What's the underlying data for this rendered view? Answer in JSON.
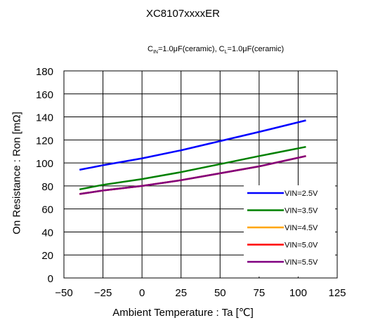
{
  "chart_data": {
    "type": "line",
    "title": "XC8107xxxxER",
    "conditions": {
      "cin_label": "IN",
      "cin_value": "=1.0",
      "cin_unit": "F(ceramic), C",
      "cl_label": "L",
      "cl_value": "=1.0",
      "cl_unit": "F(ceramic)"
    },
    "xlabel": "Ambient Temperature : Ta [℃]",
    "ylabel": "On Resistance : Ron [mΩ]",
    "xlim": [
      -50,
      125
    ],
    "ylim": [
      0,
      180
    ],
    "xticks": [
      "−50",
      "−25",
      "0",
      "25",
      "50",
      "75",
      "100",
      "125"
    ],
    "yticks": [
      "0",
      "20",
      "40",
      "60",
      "80",
      "100",
      "120",
      "140",
      "160",
      "180"
    ],
    "grid": true,
    "legend_position": "bottom-right",
    "x": [
      -40,
      -25,
      0,
      25,
      50,
      75,
      105
    ],
    "series": [
      {
        "name": "VIN=2.5V",
        "color": "#0000ff",
        "values": [
          94,
          98,
          104,
          111,
          119,
          127,
          137
        ]
      },
      {
        "name": "VIN=3.5V",
        "color": "#008000",
        "values": [
          77,
          81,
          86,
          92,
          99,
          106,
          114
        ]
      },
      {
        "name": "VIN=4.5V",
        "color": "#ffa500",
        "values": [
          73,
          76,
          80,
          85,
          91,
          97,
          106
        ]
      },
      {
        "name": "VIN=5.0V",
        "color": "#ff0000",
        "values": [
          73,
          76,
          80,
          85,
          91,
          97,
          106
        ]
      },
      {
        "name": "VIN=5.5V",
        "color": "#800080",
        "values": [
          73,
          76,
          80,
          85,
          91,
          97,
          106
        ]
      }
    ]
  }
}
